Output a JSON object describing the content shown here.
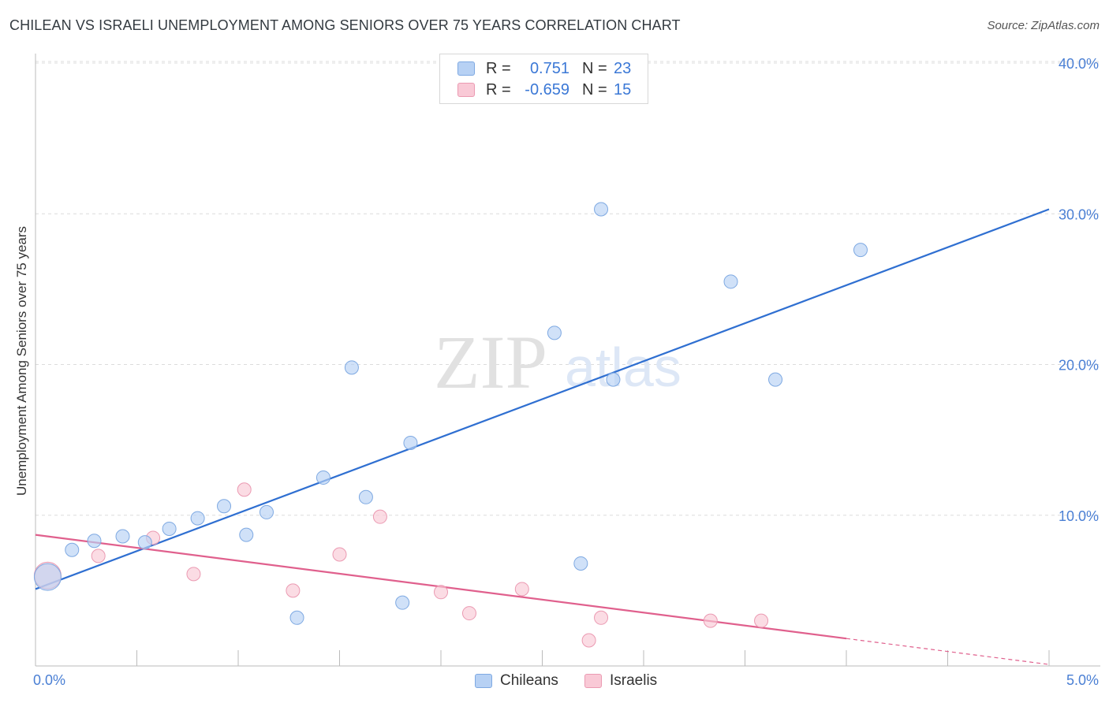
{
  "title": "CHILEAN VS ISRAELI UNEMPLOYMENT AMONG SENIORS OVER 75 YEARS CORRELATION CHART",
  "source": "Source: ZipAtlas.com",
  "watermark": {
    "zip": "ZIP",
    "atlas": "atlas"
  },
  "legend_stats": {
    "chileans": {
      "r_label": "R =",
      "r_value": "0.751",
      "n_label": "N =",
      "n_value": "23"
    },
    "israelis": {
      "r_label": "R =",
      "r_value": "-0.659",
      "n_label": "N =",
      "n_value": "15"
    }
  },
  "colors": {
    "chileans_fill": "#b7d1f4",
    "chileans_stroke": "#7ea9e2",
    "chileans_line": "#2f6fd1",
    "israelis_fill": "#f9c9d6",
    "israelis_stroke": "#eb9ab2",
    "israelis_line": "#e0608d",
    "tick_text": "#4a7fd4",
    "grid": "#dcdcdc"
  },
  "chart_data": {
    "type": "scatter",
    "title": "CHILEAN VS ISRAELI UNEMPLOYMENT AMONG SENIORS OVER 75 YEARS CORRELATION CHART",
    "xlabel": "",
    "ylabel": "Unemployment Among Seniors over 75 years",
    "xlim": [
      0,
      5
    ],
    "ylim": [
      0,
      40
    ],
    "x_tick_labels": [
      "0.0%",
      "5.0%"
    ],
    "y_ticks": [
      10,
      20,
      30,
      40
    ],
    "y_tick_labels": [
      "10.0%",
      "20.0%",
      "30.0%",
      "40.0%"
    ],
    "grid": true,
    "legend": "bottom-center",
    "series": [
      {
        "name": "Chileans",
        "points": [
          {
            "x": 0.06,
            "y": 5.9,
            "large": true
          },
          {
            "x": 0.18,
            "y": 7.7
          },
          {
            "x": 0.29,
            "y": 8.3
          },
          {
            "x": 0.43,
            "y": 8.6
          },
          {
            "x": 0.54,
            "y": 8.2
          },
          {
            "x": 0.66,
            "y": 9.1
          },
          {
            "x": 0.8,
            "y": 9.8
          },
          {
            "x": 0.93,
            "y": 10.6
          },
          {
            "x": 1.04,
            "y": 8.7
          },
          {
            "x": 1.14,
            "y": 10.2
          },
          {
            "x": 1.29,
            "y": 3.2
          },
          {
            "x": 1.42,
            "y": 12.5
          },
          {
            "x": 1.56,
            "y": 19.8
          },
          {
            "x": 1.63,
            "y": 11.2
          },
          {
            "x": 1.81,
            "y": 4.2
          },
          {
            "x": 1.85,
            "y": 14.8
          },
          {
            "x": 2.56,
            "y": 22.1
          },
          {
            "x": 2.69,
            "y": 6.8
          },
          {
            "x": 2.79,
            "y": 30.3
          },
          {
            "x": 2.85,
            "y": 19.0
          },
          {
            "x": 3.43,
            "y": 25.5
          },
          {
            "x": 3.65,
            "y": 19.0
          },
          {
            "x": 4.07,
            "y": 27.6
          }
        ],
        "trend": {
          "x": [
            0.0,
            5.0
          ],
          "y": [
            5.1,
            30.3
          ]
        }
      },
      {
        "name": "Israelis",
        "points": [
          {
            "x": 0.06,
            "y": 6.0,
            "large": true
          },
          {
            "x": 0.31,
            "y": 7.3
          },
          {
            "x": 0.58,
            "y": 8.5
          },
          {
            "x": 0.78,
            "y": 6.1
          },
          {
            "x": 1.03,
            "y": 11.7
          },
          {
            "x": 1.27,
            "y": 5.0
          },
          {
            "x": 1.5,
            "y": 7.4
          },
          {
            "x": 1.7,
            "y": 9.9
          },
          {
            "x": 2.0,
            "y": 4.9
          },
          {
            "x": 2.14,
            "y": 3.5
          },
          {
            "x": 2.4,
            "y": 5.1
          },
          {
            "x": 2.73,
            "y": 1.7
          },
          {
            "x": 2.79,
            "y": 3.2
          },
          {
            "x": 3.33,
            "y": 3.0
          },
          {
            "x": 3.58,
            "y": 3.0
          }
        ],
        "trend": {
          "x": [
            0.0,
            5.0
          ],
          "y": [
            8.7,
            0.1
          ],
          "solid_until_x": 4.0
        }
      }
    ]
  },
  "bottom_legend": {
    "chileans": "Chileans",
    "israelis": "Israelis"
  }
}
